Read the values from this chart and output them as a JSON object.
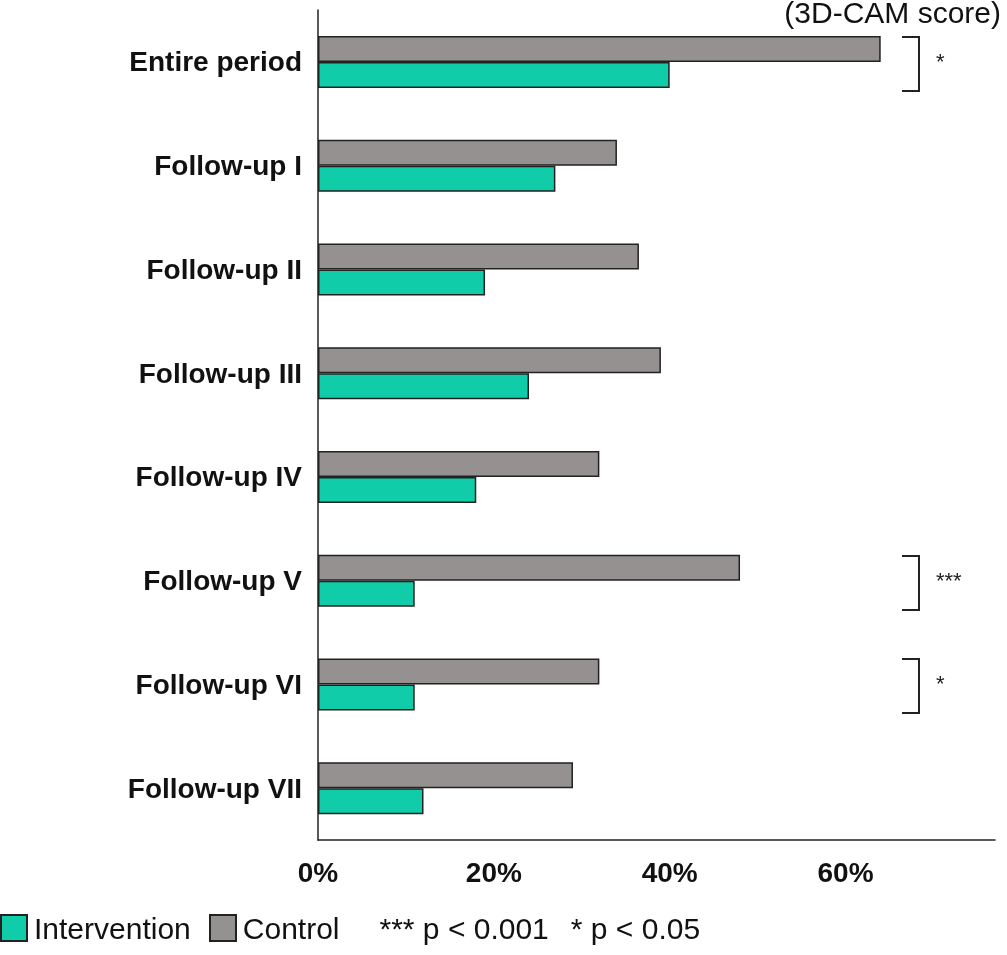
{
  "chart_data": {
    "type": "bar",
    "orientation": "horizontal",
    "subtitle": "(3D-CAM score)",
    "categories": [
      "Entire period",
      "Follow-up I",
      "Follow-up II",
      "Follow-up III",
      "Follow-up IV",
      "Follow-up V",
      "Follow-up VI",
      "Follow-up VII"
    ],
    "series": [
      {
        "name": "Intervention",
        "color": "#11cca9",
        "values": [
          40,
          27,
          19,
          24,
          18,
          11,
          11,
          12
        ]
      },
      {
        "name": "Control",
        "color": "#949190",
        "values": [
          64,
          34,
          36.5,
          39,
          32,
          48,
          32,
          29
        ]
      }
    ],
    "xlim": [
      0,
      77
    ],
    "xticks": [
      {
        "value": 0,
        "label": "0%"
      },
      {
        "value": 20,
        "label": "20%"
      },
      {
        "value": 40,
        "label": "40%"
      },
      {
        "value": 60,
        "label": "60%"
      }
    ],
    "annotations": [
      "*",
      "***",
      "*",
      "*** p < 0.001",
      "* p < 0.05"
    ],
    "grid": false,
    "legend": "bottom"
  }
}
